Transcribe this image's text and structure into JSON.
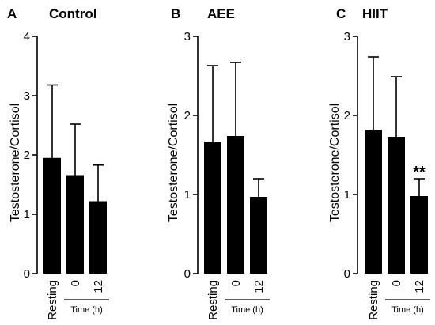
{
  "chart_data": [
    {
      "type": "bar",
      "panel_letter": "A",
      "title": "Control",
      "ylabel": "Testosterone/Cortisol",
      "categories": [
        "Resting",
        "0",
        "12"
      ],
      "values": [
        1.95,
        1.66,
        1.22
      ],
      "error_upper": [
        3.18,
        2.52,
        1.83
      ],
      "ylim": [
        0,
        4
      ],
      "yticks": [
        "0",
        "1",
        "2",
        "3",
        "4"
      ],
      "group_label": "Time (h)",
      "annotations": []
    },
    {
      "type": "bar",
      "panel_letter": "B",
      "title": "AEE",
      "ylabel": "Testosterone/Cortisol",
      "categories": [
        "Resting",
        "0",
        "12"
      ],
      "values": [
        1.67,
        1.74,
        0.97
      ],
      "error_upper": [
        2.63,
        2.67,
        1.2
      ],
      "ylim": [
        0,
        3
      ],
      "yticks": [
        "0",
        "1",
        "2",
        "3"
      ],
      "group_label": "Time (h)",
      "annotations": []
    },
    {
      "type": "bar",
      "panel_letter": "C",
      "title": "HIIT",
      "ylabel": "Testosterone/Cortisol",
      "categories": [
        "Resting",
        "0",
        "12"
      ],
      "values": [
        1.82,
        1.73,
        0.98
      ],
      "error_upper": [
        2.74,
        2.49,
        1.2
      ],
      "ylim": [
        0,
        3
      ],
      "yticks": [
        "0",
        "1",
        "2",
        "3"
      ],
      "group_label": "Time (h)",
      "annotations": [
        {
          "category": "12",
          "text": "**"
        }
      ]
    }
  ],
  "colors": {
    "bar": "#000000",
    "axis": "#000000"
  }
}
